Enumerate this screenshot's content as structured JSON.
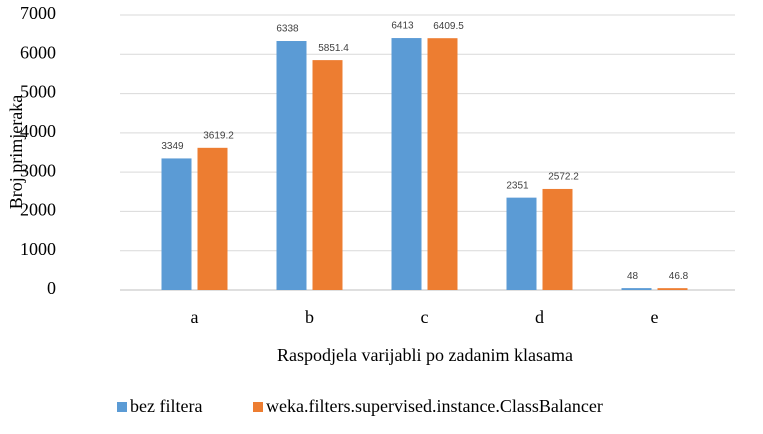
{
  "chart_data": {
    "type": "bar",
    "x_label": "Raspodjela varijabli po zadanim klasama",
    "y_label": "Broj primjeraka",
    "categories": [
      "a",
      "b",
      "c",
      "d",
      "e"
    ],
    "series": [
      {
        "name": "bez filtera",
        "color": "#5b9bd5",
        "values": [
          3349,
          6338,
          6413,
          2351,
          48
        ]
      },
      {
        "name": "weka.filters.supervised.instance.ClassBalancer",
        "color": "#ed7d31",
        "values": [
          3619.2,
          5851.4,
          6409.5,
          2572.2,
          46.8
        ]
      }
    ],
    "ylim": [
      0,
      7000
    ],
    "yticks": [
      0,
      1000,
      2000,
      3000,
      4000,
      5000,
      6000,
      7000
    ],
    "grid": true,
    "legend": "bottom"
  }
}
